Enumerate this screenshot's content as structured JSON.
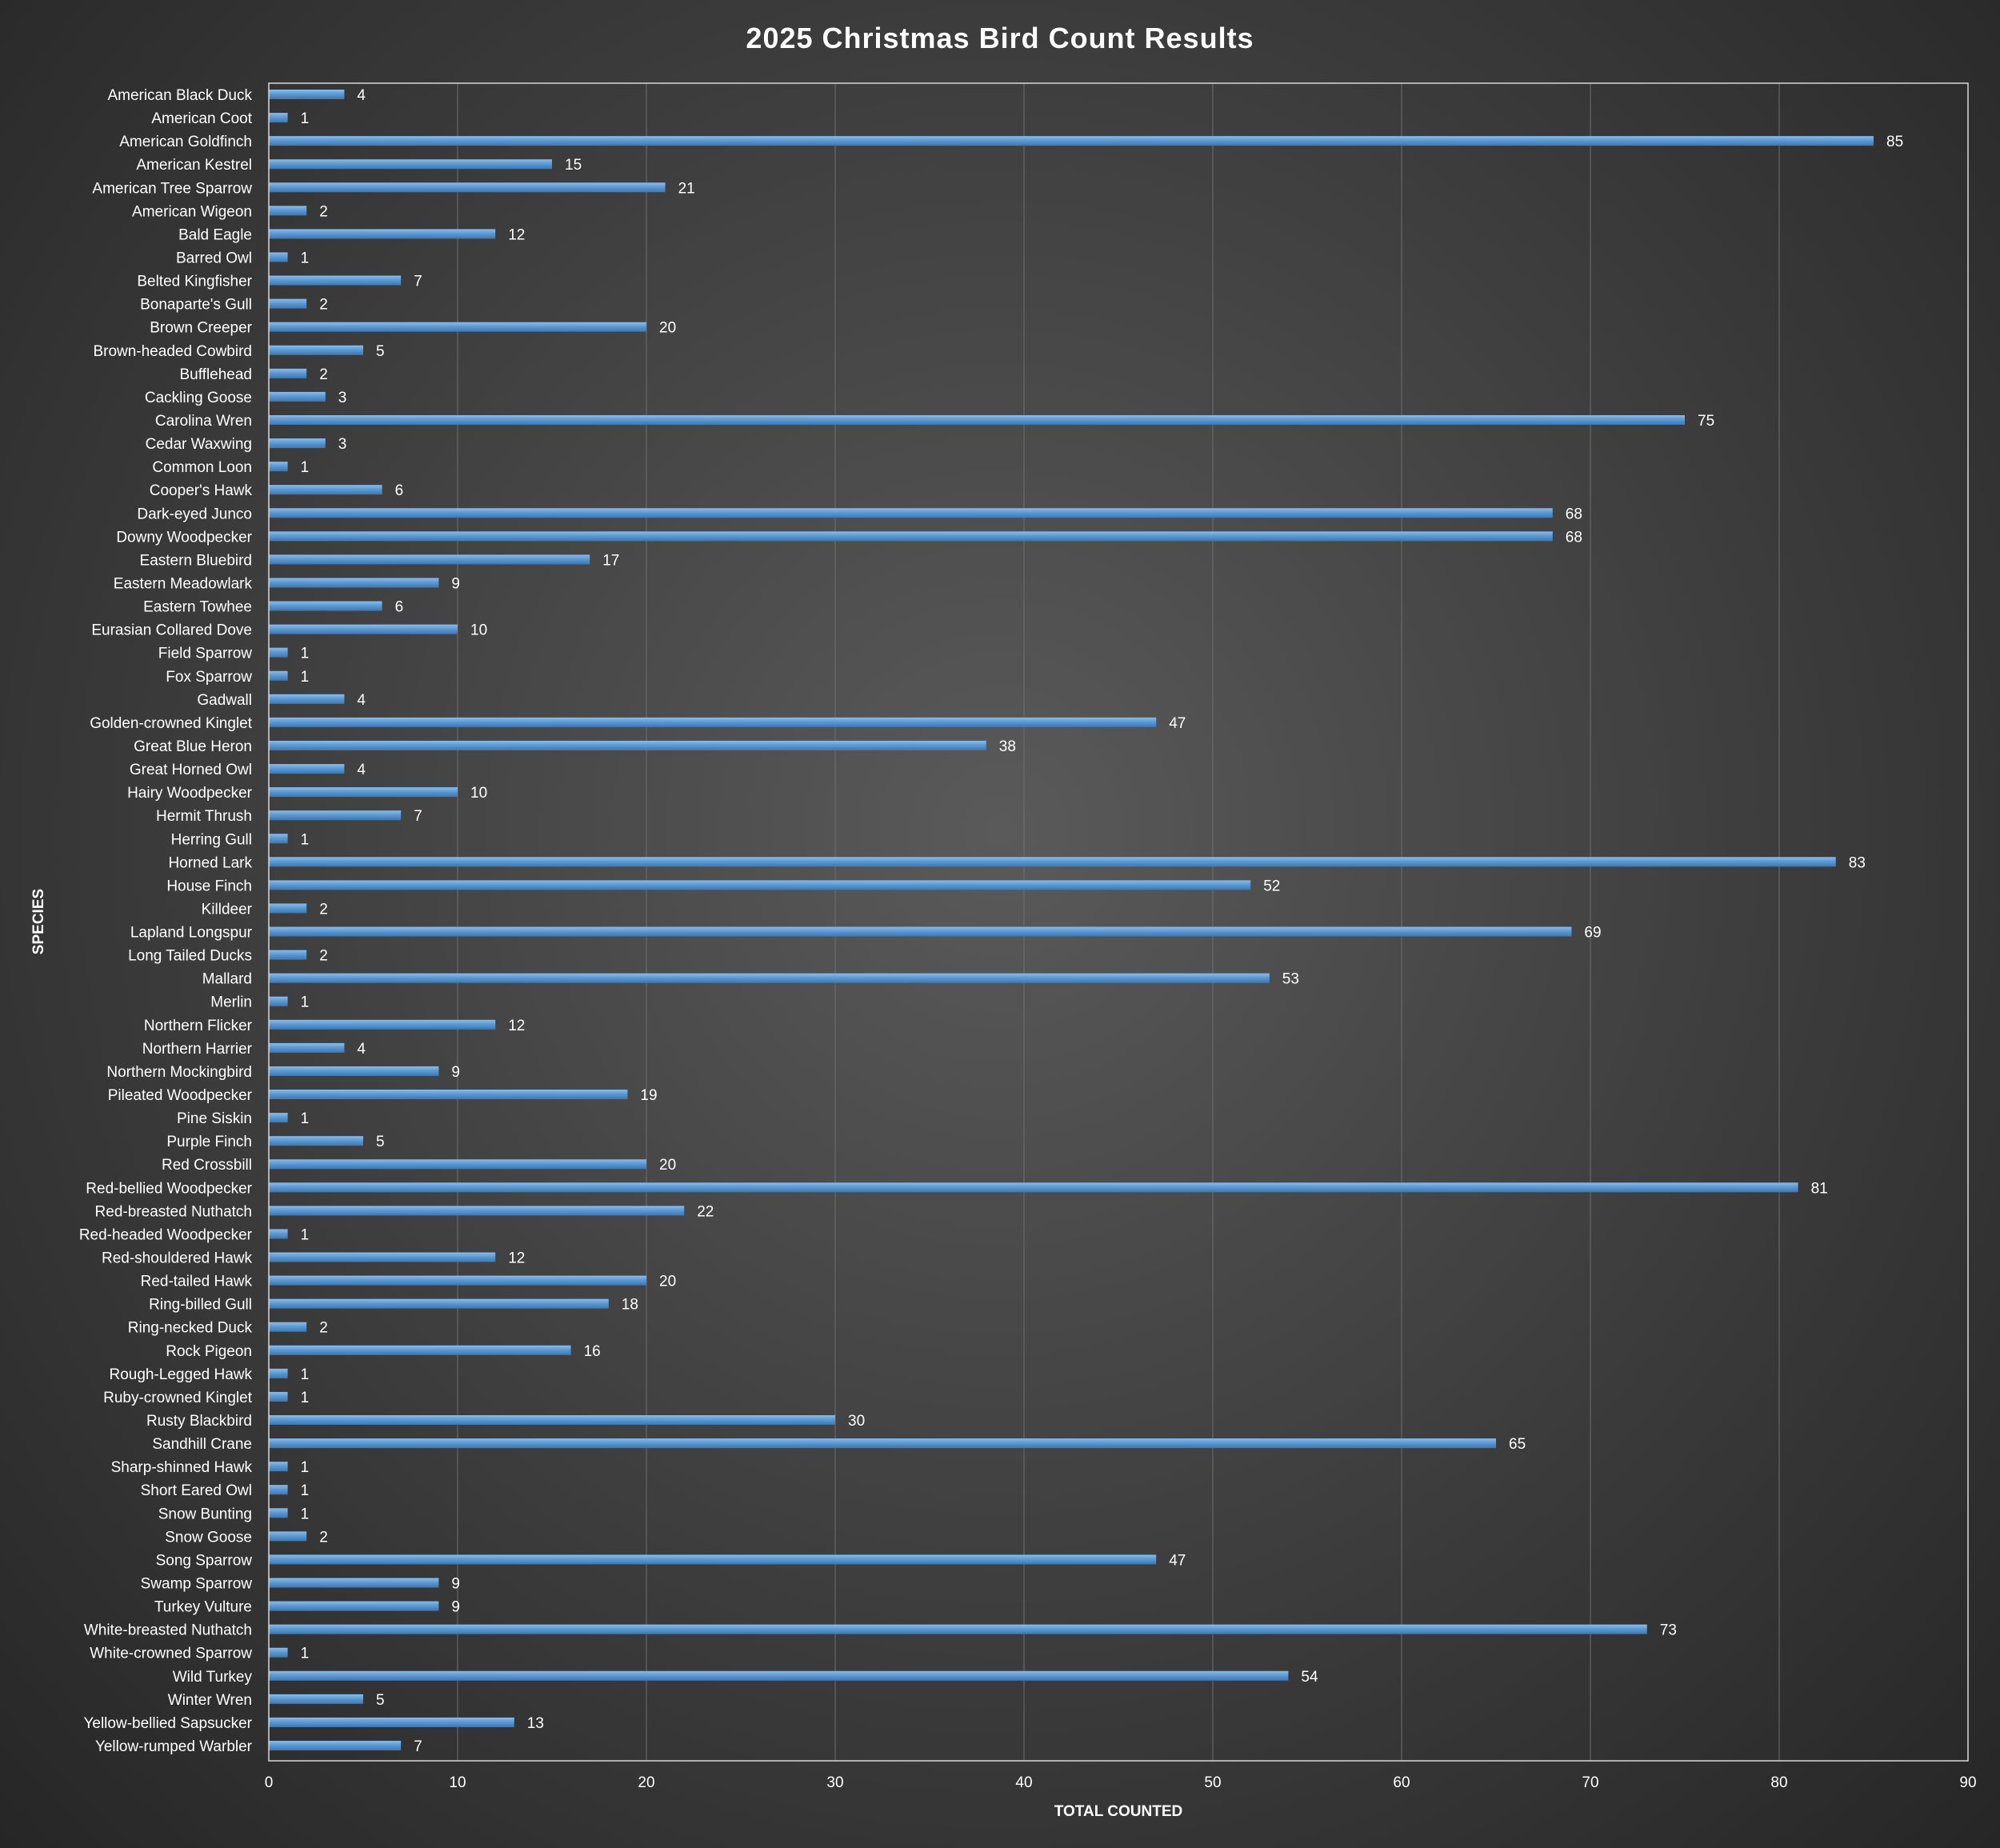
{
  "chart_data": {
    "type": "bar",
    "orientation": "horizontal",
    "title": "2025 Christmas Bird Count Results",
    "xlabel": "TOTAL COUNTED",
    "ylabel": "SPECIES",
    "xlim": [
      0,
      90
    ],
    "xticks": [
      0,
      10,
      20,
      30,
      40,
      50,
      60,
      70,
      80,
      90
    ],
    "grid": "vertical",
    "legend": "none",
    "bar_color": "#5b9bd5",
    "categories": [
      "American Black Duck",
      "American Coot",
      "American Goldfinch",
      "American Kestrel",
      "American Tree Sparrow",
      "American Wigeon",
      "Bald Eagle",
      "Barred Owl",
      "Belted Kingfisher",
      "Bonaparte's Gull",
      "Brown Creeper",
      "Brown-headed Cowbird",
      "Bufflehead",
      "Cackling Goose",
      "Carolina Wren",
      "Cedar Waxwing",
      "Common Loon",
      "Cooper's Hawk",
      "Dark-eyed Junco",
      "Downy Woodpecker",
      "Eastern Bluebird",
      "Eastern Meadowlark",
      "Eastern Towhee",
      "Eurasian Collared Dove",
      "Field Sparrow",
      "Fox Sparrow",
      "Gadwall",
      "Golden-crowned Kinglet",
      "Great Blue Heron",
      "Great Horned Owl",
      "Hairy Woodpecker",
      "Hermit Thrush",
      "Herring Gull",
      "Horned Lark",
      "House Finch",
      "Killdeer",
      "Lapland Longspur",
      "Long Tailed Ducks",
      "Mallard",
      "Merlin",
      "Northern Flicker",
      "Northern Harrier",
      "Northern Mockingbird",
      "Pileated Woodpecker",
      "Pine Siskin",
      "Purple Finch",
      "Red Crossbill",
      "Red-bellied Woodpecker",
      "Red-breasted Nuthatch",
      "Red-headed Woodpecker",
      "Red-shouldered Hawk",
      "Red-tailed Hawk",
      "Ring-billed Gull",
      "Ring-necked Duck",
      "Rock Pigeon",
      "Rough-Legged Hawk",
      "Ruby-crowned Kinglet",
      "Rusty Blackbird",
      "Sandhill Crane",
      "Sharp-shinned Hawk",
      "Short Eared Owl",
      "Snow Bunting",
      "Snow Goose",
      "Song Sparrow",
      "Swamp Sparrow",
      "Turkey Vulture",
      "White-breasted Nuthatch",
      "White-crowned Sparrow",
      "Wild Turkey",
      "Winter Wren",
      "Yellow-bellied Sapsucker",
      "Yellow-rumped Warbler"
    ],
    "values": [
      4,
      1,
      85,
      15,
      21,
      2,
      12,
      1,
      7,
      2,
      20,
      5,
      2,
      3,
      75,
      3,
      1,
      6,
      68,
      68,
      17,
      9,
      6,
      10,
      1,
      1,
      4,
      47,
      38,
      4,
      10,
      7,
      1,
      83,
      52,
      2,
      69,
      2,
      53,
      1,
      12,
      4,
      9,
      19,
      1,
      5,
      20,
      81,
      22,
      1,
      12,
      20,
      18,
      2,
      16,
      1,
      1,
      30,
      65,
      1,
      1,
      1,
      2,
      47,
      9,
      9,
      73,
      1,
      54,
      5,
      13,
      7
    ]
  }
}
